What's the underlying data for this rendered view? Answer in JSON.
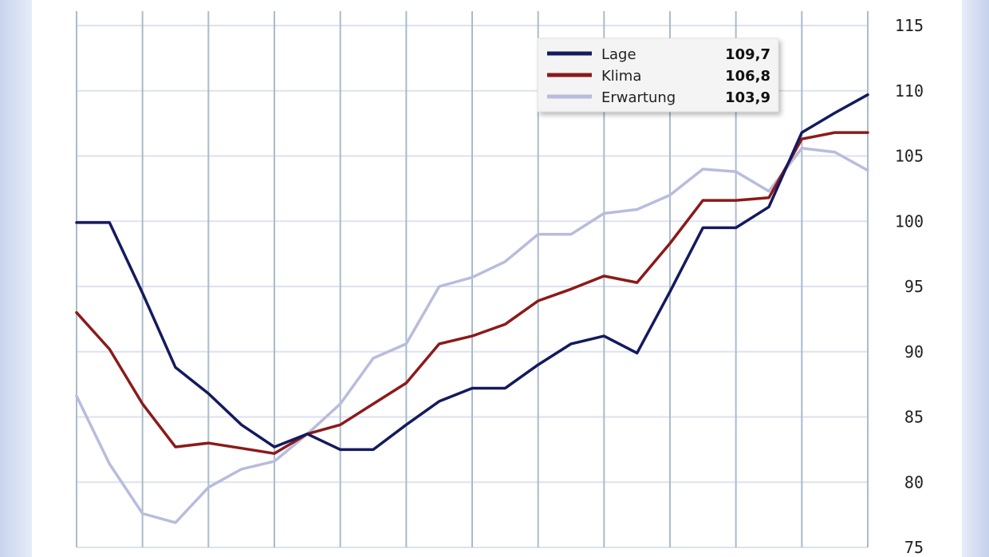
{
  "chart_data": {
    "type": "line",
    "title": "",
    "xlabel": "",
    "ylabel": "",
    "ylim": [
      75,
      115
    ],
    "y_ticks": [
      "115",
      "110",
      "105",
      "100",
      "95",
      "90",
      "85",
      "80",
      "75"
    ],
    "y_axis_position": "right",
    "grid": true,
    "legend_placement": "top-right",
    "x": [
      1,
      2,
      3,
      4,
      5,
      6,
      7,
      8,
      9,
      10,
      11,
      12,
      13,
      14,
      15,
      16,
      17,
      18,
      19,
      20,
      21,
      22,
      23,
      24,
      25
    ],
    "series": [
      {
        "name": "Lage",
        "color": "#141a5e",
        "latest": "109,7",
        "values": [
          99.9,
          99.9,
          94.5,
          88.8,
          86.8,
          84.4,
          82.7,
          83.7,
          82.5,
          82.5,
          84.4,
          86.2,
          87.2,
          87.2,
          89.0,
          90.6,
          91.2,
          89.9,
          94.6,
          99.5,
          99.5,
          101.1,
          106.8,
          108.3,
          109.7
        ]
      },
      {
        "name": "Klima",
        "color": "#8b1a1a",
        "latest": "106,8",
        "values": [
          93.0,
          90.2,
          86.0,
          82.7,
          83.0,
          82.6,
          82.2,
          83.7,
          84.4,
          86.0,
          87.6,
          90.6,
          91.2,
          92.1,
          93.9,
          94.8,
          95.8,
          95.3,
          98.3,
          101.6,
          101.6,
          101.8,
          106.3,
          106.8,
          106.8
        ]
      },
      {
        "name": "Erwartung",
        "color": "#b8bcdc",
        "latest": "103,9",
        "values": [
          86.6,
          81.4,
          77.6,
          76.9,
          79.6,
          81.0,
          81.6,
          83.7,
          86.0,
          89.5,
          90.6,
          95.0,
          95.7,
          96.9,
          99.0,
          99.0,
          100.6,
          100.9,
          102.0,
          104.0,
          103.8,
          102.3,
          105.6,
          105.3,
          103.9
        ]
      }
    ]
  }
}
